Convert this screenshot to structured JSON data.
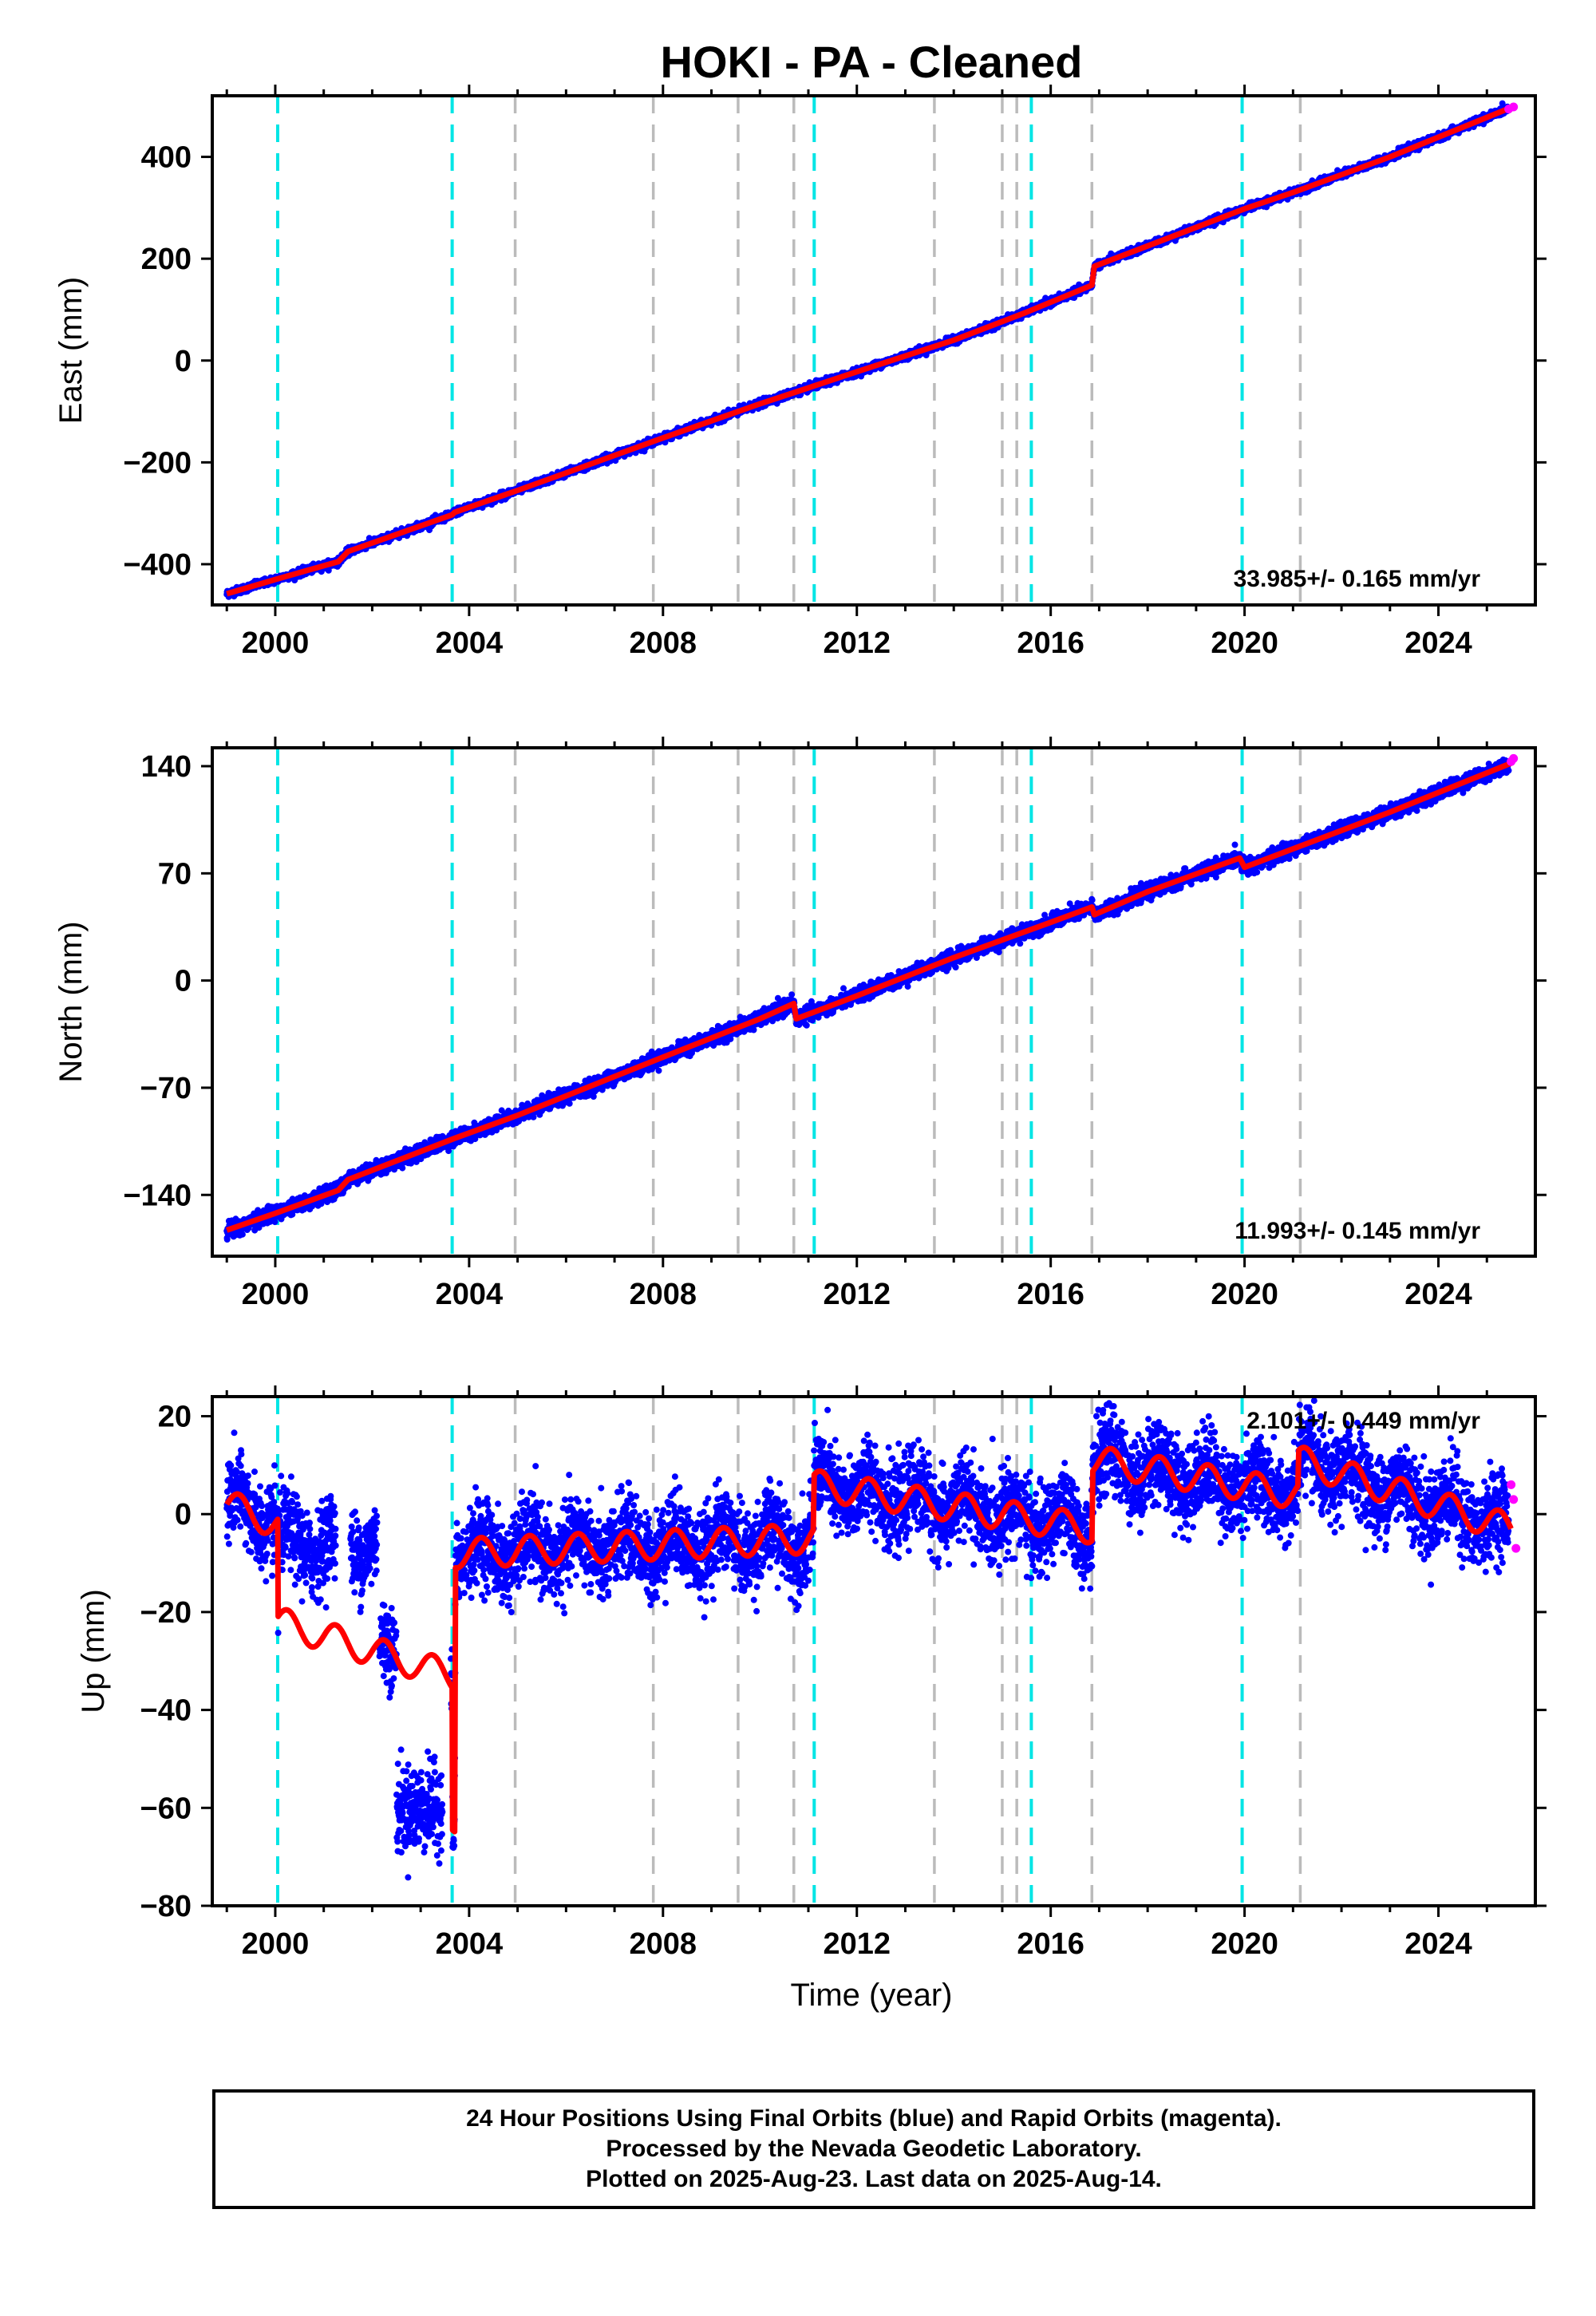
{
  "title": "HOKI  - PA - Cleaned",
  "xlabel": "Time (year)",
  "caption": [
    "24 Hour Positions Using Final Orbits (blue) and Rapid Orbits (magenta).",
    "Processed by the Nevada Geodetic Laboratory.",
    "Plotted on 2025-Aug-23. Last data on 2025-Aug-14."
  ],
  "colors": {
    "final_orbits": "#0000ff",
    "rapid_orbits": "#ff00ff",
    "model": "#ff0000",
    "equipment_change": "#00e5e5",
    "earthquake": "#bbbbbb"
  },
  "chart_data": [
    {
      "type": "scatter",
      "panel": "east",
      "ylabel": "East (mm)",
      "rate": "33.985+/- 0.165 mm/yr",
      "xlim": [
        1998.7,
        2026.0
      ],
      "ylim": [
        -480,
        520
      ],
      "x_ticks": [
        "2000",
        "2004",
        "2008",
        "2012",
        "2016",
        "2020",
        "2024"
      ],
      "y_ticks": [
        "−400",
        "−200",
        "0",
        "200",
        "400"
      ],
      "model_points": [
        [
          1999.0,
          -458
        ],
        [
          2000.0,
          -430
        ],
        [
          2001.3,
          -395
        ],
        [
          2001.5,
          -375
        ],
        [
          2003.65,
          -303
        ],
        [
          2003.7,
          -298
        ],
        [
          2005.0,
          -255
        ],
        [
          2008.0,
          -152
        ],
        [
          2010.0,
          -85
        ],
        [
          2010.8,
          -60
        ],
        [
          2012.0,
          -22
        ],
        [
          2014.0,
          40
        ],
        [
          2015.5,
          95
        ],
        [
          2016.85,
          148
        ],
        [
          2016.9,
          185
        ],
        [
          2018.0,
          225
        ],
        [
          2020.0,
          298
        ],
        [
          2021.0,
          330
        ],
        [
          2023.0,
          400
        ],
        [
          2025.5,
          497
        ]
      ],
      "rapid_points": [
        [
          2025.45,
          494
        ],
        [
          2025.55,
          498
        ]
      ]
    },
    {
      "type": "scatter",
      "panel": "north",
      "ylabel": "North (mm)",
      "rate": "11.993+/- 0.145 mm/yr",
      "xlim": [
        1998.7,
        2026.0
      ],
      "ylim": [
        -180,
        152
      ],
      "x_ticks": [
        "2000",
        "2004",
        "2008",
        "2012",
        "2016",
        "2020",
        "2024"
      ],
      "y_ticks": [
        "−140",
        "−70",
        "0",
        "70",
        "140"
      ],
      "model_points": [
        [
          1999.0,
          -163
        ],
        [
          2000.0,
          -152
        ],
        [
          2001.3,
          -137
        ],
        [
          2001.5,
          -130
        ],
        [
          2003.7,
          -103
        ],
        [
          2005.0,
          -88
        ],
        [
          2008.0,
          -50
        ],
        [
          2010.0,
          -25
        ],
        [
          2010.7,
          -15
        ],
        [
          2010.75,
          -25
        ],
        [
          2012.0,
          -10
        ],
        [
          2014.0,
          15
        ],
        [
          2016.0,
          38
        ],
        [
          2016.85,
          48
        ],
        [
          2016.9,
          43
        ],
        [
          2018.0,
          58
        ],
        [
          2019.9,
          80
        ],
        [
          2020.0,
          74
        ],
        [
          2021.0,
          86
        ],
        [
          2023.0,
          110
        ],
        [
          2025.5,
          142
        ]
      ],
      "rapid_points": [
        [
          2025.5,
          143
        ],
        [
          2025.55,
          145
        ]
      ]
    },
    {
      "type": "scatter",
      "panel": "up",
      "ylabel": "Up (mm)",
      "rate": "2.101+/- 0.449 mm/yr",
      "xlim": [
        1998.7,
        2026.0
      ],
      "ylim": [
        -80,
        24
      ],
      "x_ticks": [
        "2000",
        "2004",
        "2008",
        "2012",
        "2016",
        "2020",
        "2024"
      ],
      "y_ticks": [
        "20",
        "0",
        "−20",
        "−40",
        "−60",
        "−80"
      ],
      "model_points": [
        [
          1999.0,
          2
        ],
        [
          2000.05,
          -2
        ],
        [
          2000.06,
          -22
        ],
        [
          2003.65,
          -33
        ],
        [
          2003.66,
          -62
        ],
        [
          2003.7,
          -62
        ],
        [
          2003.72,
          -8
        ],
        [
          2011.1,
          -5
        ],
        [
          2011.12,
          6
        ],
        [
          2016.85,
          -3
        ],
        [
          2016.87,
          11
        ],
        [
          2021.1,
          4
        ],
        [
          2021.12,
          11
        ],
        [
          2025.5,
          -3
        ]
      ],
      "rapid_points": [
        [
          2025.5,
          6
        ],
        [
          2025.55,
          3
        ],
        [
          2025.6,
          -7
        ]
      ]
    }
  ],
  "equipment_changes": [
    2000.05,
    2003.65,
    2011.12,
    2015.6,
    2019.95
  ],
  "earthquakes": [
    2004.95,
    2007.8,
    2009.55,
    2010.7,
    2013.6,
    2015.0,
    2015.3,
    2016.85,
    2021.15
  ]
}
